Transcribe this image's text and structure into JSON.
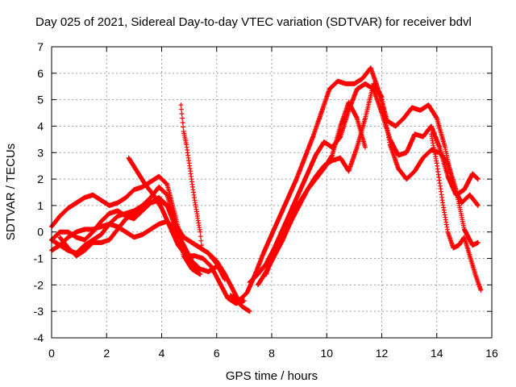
{
  "chart_data": {
    "type": "scatter",
    "title": "Day 025 of 2021, Sidereal Day-to-day VTEC variation (SDTVAR) for receiver bdvl",
    "xlabel": "GPS time / hours",
    "ylabel": "SDTVAR / TECUs",
    "xlim": [
      0,
      16
    ],
    "ylim": [
      -4,
      7
    ],
    "xticks": [
      0,
      2,
      4,
      6,
      8,
      10,
      12,
      14,
      16
    ],
    "yticks": [
      -4,
      -3,
      -2,
      -1,
      0,
      1,
      2,
      3,
      4,
      5,
      6,
      7
    ],
    "grid": true,
    "marker": "+",
    "color": "#ff0000",
    "series": [
      {
        "x": [
          0.0,
          0.3,
          0.6,
          0.9,
          1.2,
          1.5,
          1.8,
          2.1,
          2.4,
          2.7,
          3.0,
          3.3,
          3.6,
          3.9,
          4.2,
          4.5,
          4.8,
          5.1,
          5.3
        ],
        "y": [
          0.2,
          0.6,
          0.9,
          1.1,
          1.3,
          1.4,
          1.2,
          1.0,
          1.1,
          1.3,
          1.6,
          1.7,
          1.9,
          2.1,
          1.8,
          0.6,
          -0.7,
          -1.2,
          -1.5
        ]
      },
      {
        "x": [
          0.0,
          0.3,
          0.6,
          0.9,
          1.2,
          1.5,
          1.8,
          2.1,
          2.4,
          2.7,
          3.0,
          3.3,
          3.6,
          3.9,
          4.2,
          4.5,
          4.8,
          5.1,
          5.4
        ],
        "y": [
          -0.3,
          -0.5,
          -0.7,
          -0.8,
          -0.5,
          -0.3,
          -0.1,
          0.3,
          0.6,
          0.7,
          0.8,
          1.0,
          1.3,
          1.7,
          1.4,
          0.3,
          -0.9,
          -1.4,
          -1.6
        ]
      },
      {
        "x": [
          0.0,
          0.3,
          0.6,
          0.9,
          1.2,
          1.5,
          1.8,
          2.1,
          2.4,
          2.7,
          3.0,
          3.3,
          3.6,
          3.9,
          4.2,
          4.5,
          4.8,
          5.1,
          5.4,
          5.7,
          6.0
        ],
        "y": [
          -0.7,
          -0.5,
          -0.2,
          0.0,
          0.1,
          0.1,
          0.2,
          0.3,
          0.2,
          0.0,
          -0.2,
          -0.1,
          0.1,
          0.3,
          0.4,
          0.1,
          -0.5,
          -1.1,
          -1.4,
          -1.5,
          -1.3
        ]
      },
      {
        "x": [
          0.0,
          0.3,
          0.6,
          0.9,
          1.2,
          1.5,
          1.8,
          2.1,
          2.4,
          2.7,
          3.0,
          3.3,
          3.6,
          3.9,
          4.2,
          4.5,
          4.8,
          5.1,
          5.4,
          5.7,
          6.0,
          6.3
        ],
        "y": [
          -0.3,
          0.0,
          0.0,
          -0.2,
          -0.3,
          0.0,
          0.4,
          0.7,
          0.8,
          0.6,
          0.5,
          0.8,
          1.1,
          1.2,
          1.0,
          0.3,
          -0.2,
          -0.4,
          -0.6,
          -0.8,
          -1.2,
          -1.8
        ]
      },
      {
        "x": [
          0.3,
          0.6,
          0.9,
          1.2,
          1.5,
          1.8,
          2.1,
          2.4,
          2.7,
          3.0,
          3.3,
          3.6,
          3.9,
          4.2,
          4.5,
          4.8,
          5.1,
          5.4,
          5.7,
          6.0,
          6.3,
          6.6,
          6.9,
          7.2
        ],
        "y": [
          -0.2,
          -0.6,
          -0.9,
          -0.7,
          -0.4,
          -0.4,
          -0.3,
          0.1,
          0.5,
          0.7,
          0.9,
          1.1,
          1.3,
          1.0,
          0.2,
          -0.2,
          -0.4,
          -0.6,
          -0.8,
          -1.1,
          -1.6,
          -2.2,
          -2.8,
          -3.0
        ]
      },
      {
        "x": [
          2.8,
          3.1,
          3.4,
          3.7,
          4.0,
          4.3,
          4.6,
          4.9,
          5.2,
          5.5,
          5.8,
          6.1,
          6.4,
          6.7,
          7.0
        ],
        "y": [
          2.8,
          2.3,
          1.8,
          1.4,
          0.9,
          0.2,
          -0.5,
          -0.9,
          -0.9,
          -1.0,
          -1.3,
          -1.9,
          -2.5,
          -2.7,
          -2.6
        ]
      },
      {
        "x": [
          4.7,
          4.75,
          4.8,
          4.9,
          5.0,
          5.1,
          5.2,
          5.3,
          5.4,
          5.45
        ],
        "y": [
          4.8,
          4.3,
          3.8,
          3.3,
          2.6,
          1.9,
          1.2,
          0.6,
          0.0,
          -0.5
        ]
      },
      {
        "x": [
          6.5,
          6.8,
          7.1,
          7.4,
          7.7,
          8.0,
          8.3,
          8.6,
          8.9,
          9.2,
          9.5,
          9.8,
          10.1,
          10.4,
          10.7,
          11.0,
          11.3,
          11.6,
          11.9,
          12.2,
          12.5,
          12.8,
          13.1,
          13.4,
          13.7,
          14.0,
          14.3,
          14.6,
          14.9,
          15.2,
          15.5
        ],
        "y": [
          -2.4,
          -2.6,
          -2.3,
          -1.6,
          -0.8,
          -0.1,
          0.6,
          1.3,
          2.0,
          2.8,
          3.6,
          4.5,
          5.4,
          5.7,
          5.6,
          5.6,
          5.8,
          6.2,
          5.3,
          4.2,
          4.0,
          4.3,
          4.7,
          4.6,
          4.8,
          4.3,
          3.2,
          1.7,
          1.1,
          1.4,
          1.0
        ]
      },
      {
        "x": [
          7.2,
          7.5,
          7.8,
          8.1,
          8.4,
          8.7,
          9.0,
          9.3,
          9.6,
          9.9,
          10.2,
          10.5,
          10.8,
          11.1,
          11.4,
          11.7,
          12.0,
          12.3,
          12.6,
          12.9,
          13.2,
          13.5,
          13.8,
          14.1,
          14.4,
          14.7,
          15.0,
          15.3,
          15.5
        ],
        "y": [
          -1.9,
          -1.6,
          -1.2,
          -0.6,
          0.1,
          0.8,
          1.5,
          2.2,
          2.9,
          3.4,
          3.2,
          3.6,
          4.6,
          5.4,
          5.6,
          5.4,
          4.5,
          3.5,
          2.9,
          3.0,
          3.7,
          3.6,
          4.0,
          3.2,
          2.1,
          1.4,
          1.6,
          2.2,
          2.0
        ]
      },
      {
        "x": [
          7.5,
          7.8,
          8.1,
          8.4,
          8.7,
          9.0,
          9.3,
          9.6,
          9.9,
          10.2,
          10.5,
          10.8,
          11.1,
          11.4
        ],
        "y": [
          -2.0,
          -1.5,
          -0.9,
          -0.3,
          0.4,
          1.0,
          1.6,
          2.0,
          2.4,
          2.9,
          4.0,
          4.9,
          4.3,
          3.2
        ]
      },
      {
        "x": [
          7.8,
          8.1,
          8.4,
          8.7,
          9.0,
          9.3,
          9.6,
          9.9,
          10.2,
          10.5,
          10.8,
          11.1,
          11.4,
          11.7,
          12.0,
          12.3,
          12.6,
          12.9,
          13.2,
          13.5,
          13.8,
          14.1,
          14.4,
          14.7,
          15.0,
          15.3,
          15.5
        ],
        "y": [
          -1.6,
          -0.7,
          0.1,
          0.6,
          1.1,
          1.6,
          2.1,
          2.5,
          2.7,
          2.8,
          2.3,
          3.2,
          4.3,
          5.6,
          5.1,
          3.3,
          2.4,
          2.0,
          2.3,
          2.8,
          3.1,
          3.0,
          2.6,
          1.6,
          0.1,
          -0.5,
          -0.4
        ]
      },
      {
        "x": [
          13.8,
          14.0,
          14.2,
          14.4,
          14.6,
          14.8,
          15.0,
          15.2,
          15.4,
          15.6
        ],
        "y": [
          3.7,
          2.6,
          1.2,
          0.0,
          -0.6,
          -0.5,
          -0.2,
          -0.9,
          -1.6,
          -2.2
        ]
      }
    ]
  }
}
